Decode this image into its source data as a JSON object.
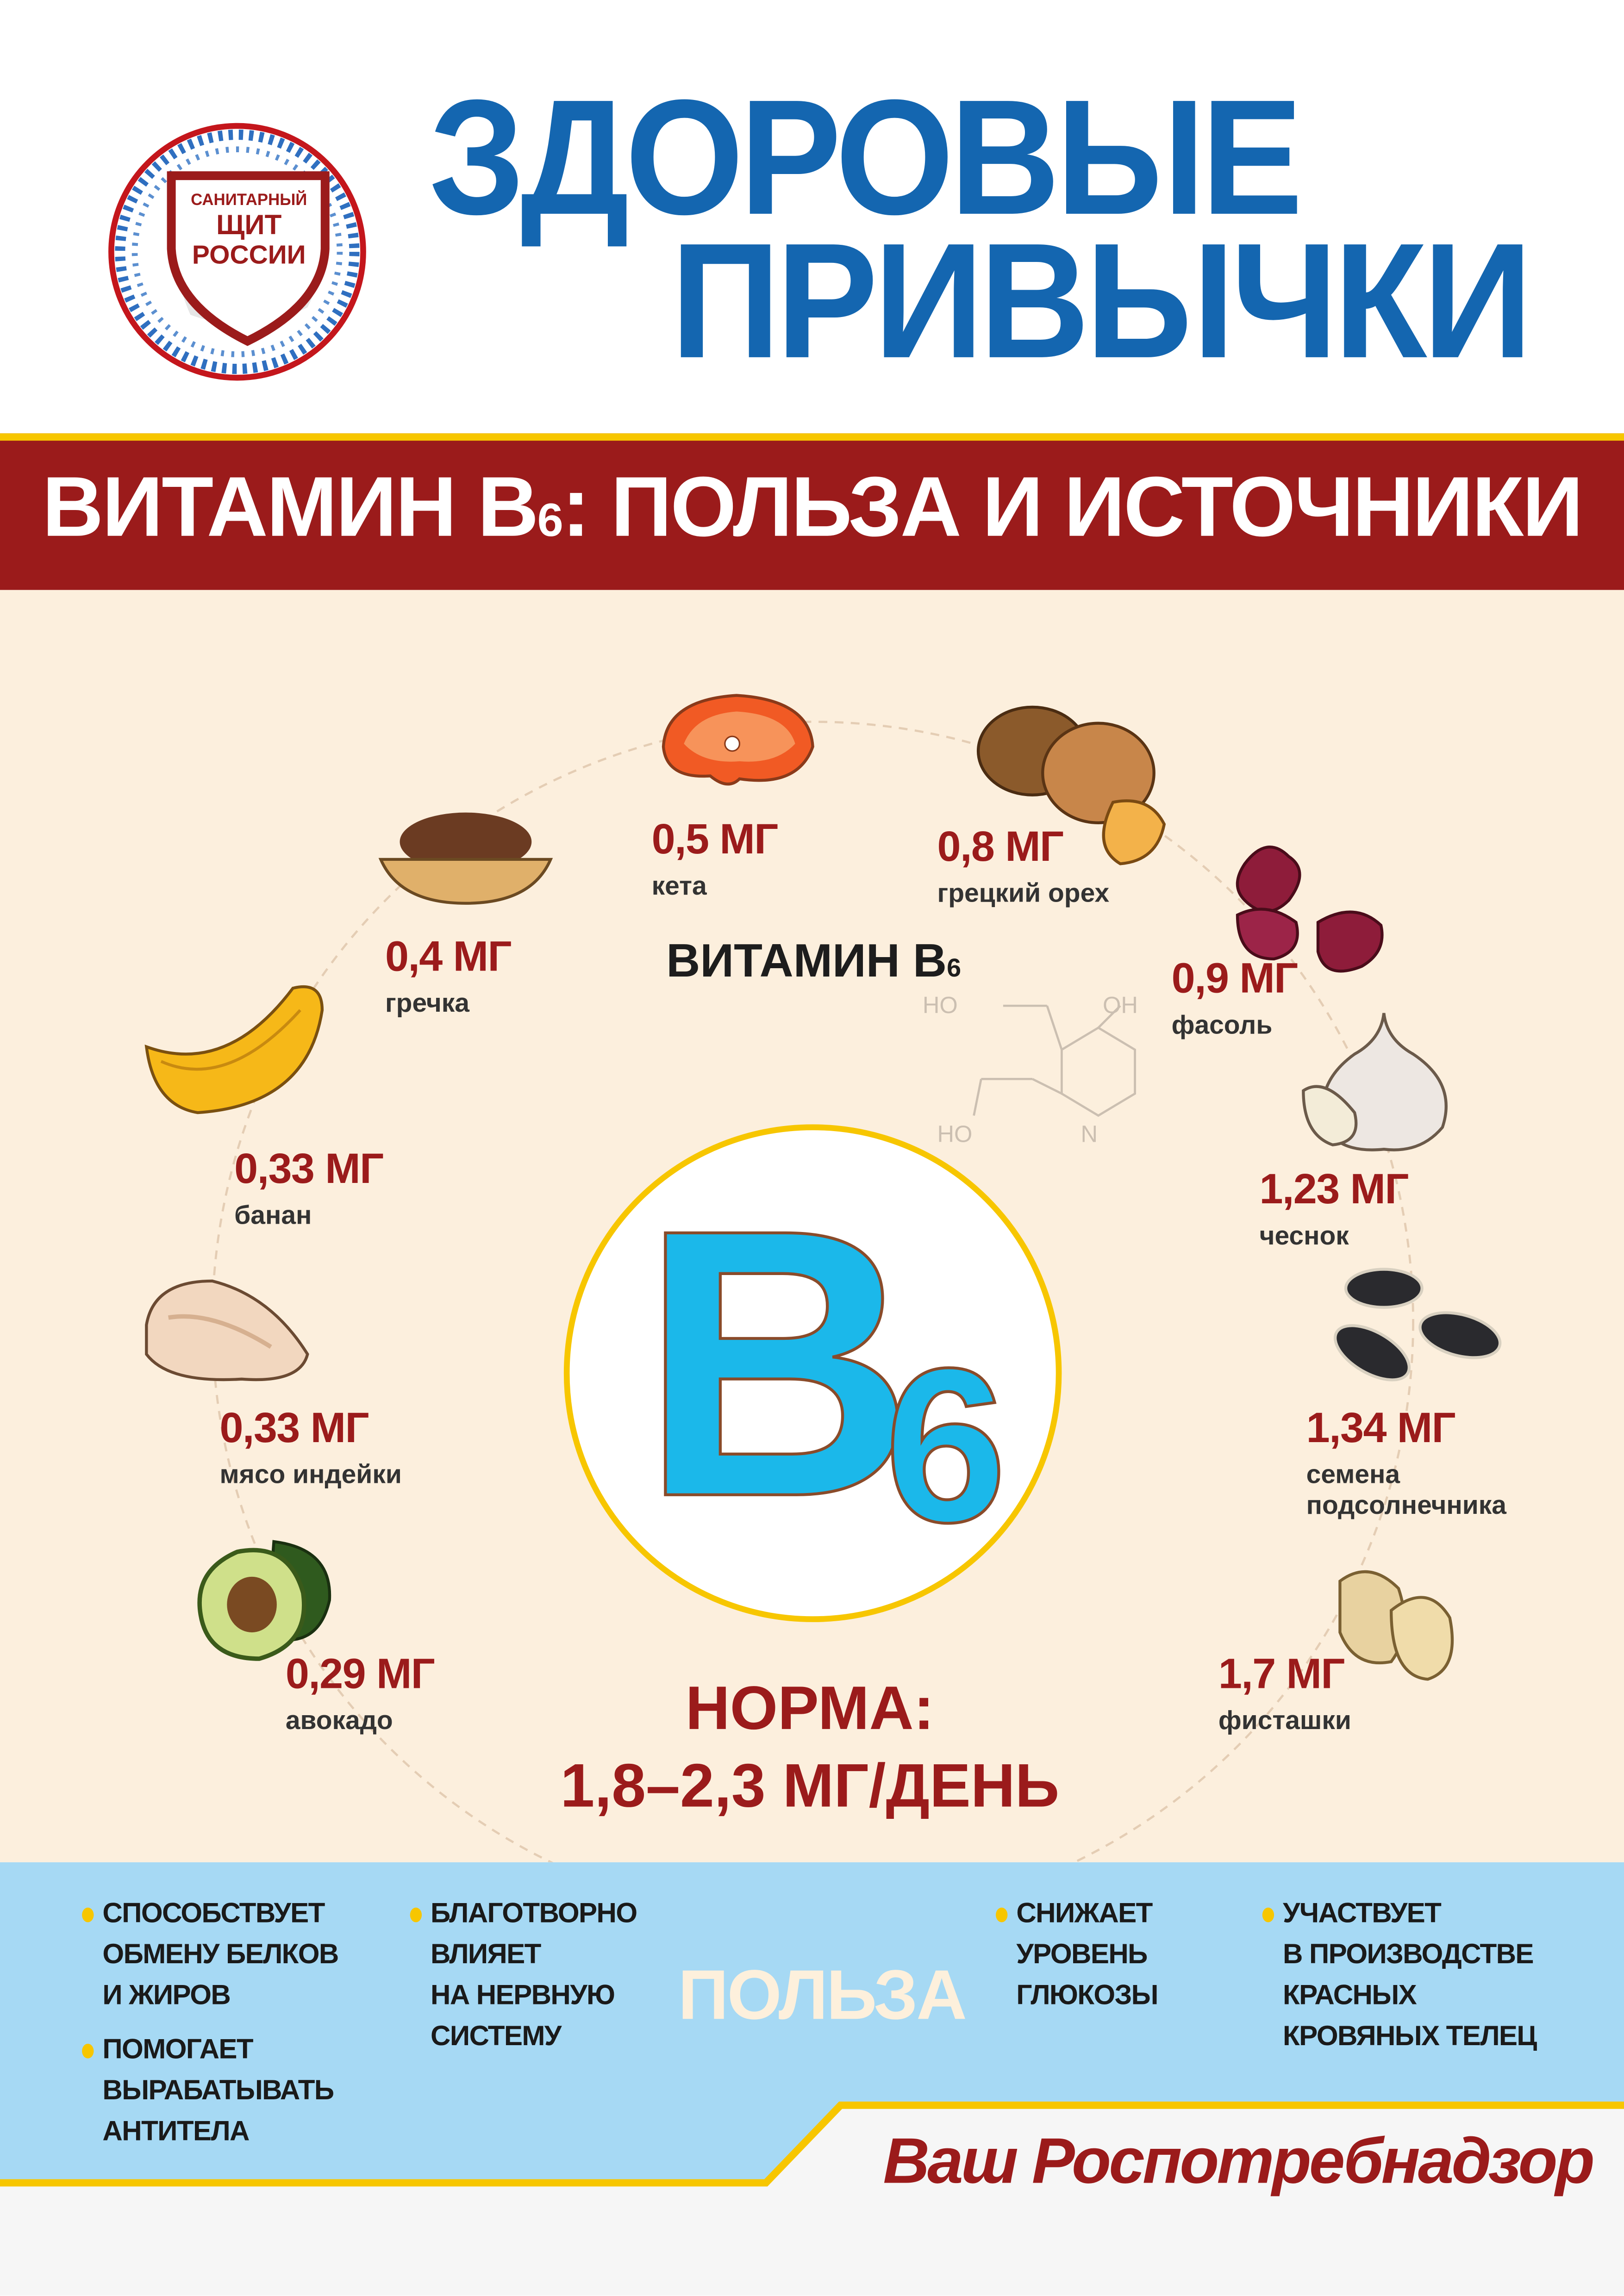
{
  "logo": {
    "line1": "САНИТАРНЫЙ",
    "line2": "ЩИТ",
    "line3": "РОССИИ"
  },
  "header": {
    "title_line1": "ЗДОРОВЫЕ",
    "title_line2": "ПРИВЫЧКИ"
  },
  "banner": {
    "prefix": "ВИТАМИН B",
    "subscript": "6",
    "suffix": ": ПОЛЬЗА И ИСТОЧНИКИ"
  },
  "center": {
    "vitamin_label": "ВИТАМИН B",
    "vitamin_sub": "6",
    "big_letter": "B",
    "big_digit": "6",
    "molecule": {
      "ho1": "HO",
      "oh": "OH",
      "ho2": "HO",
      "n": "N"
    },
    "norm_label": "НОРМА:",
    "norm_value": "1,8–2,3 МГ/ДЕНЬ"
  },
  "sources": [
    {
      "value": "0,5 МГ",
      "name": "кета",
      "icon": "salmon-steak-icon"
    },
    {
      "value": "0,8 МГ",
      "name": "грецкий орех",
      "icon": "walnut-icon"
    },
    {
      "value": "0,4 МГ",
      "name": "гречка",
      "icon": "buckwheat-bowl-icon"
    },
    {
      "value": "0,9 МГ",
      "name": "фасоль",
      "icon": "kidney-beans-icon"
    },
    {
      "value": "0,33 МГ",
      "name": "банан",
      "icon": "banana-icon"
    },
    {
      "value": "1,23 МГ",
      "name": "чеснок",
      "icon": "garlic-icon"
    },
    {
      "value": "0,33 МГ",
      "name": "мясо индейки",
      "icon": "turkey-meat-icon"
    },
    {
      "value": "1,34 МГ",
      "name": "семена\nподсолнечника",
      "icon": "sunflower-seeds-icon"
    },
    {
      "value": "0,29 МГ",
      "name": "авокадо",
      "icon": "avocado-icon"
    },
    {
      "value": "1,7 МГ",
      "name": "фисташки",
      "icon": "pistachio-icon"
    }
  ],
  "benefits": {
    "heading": "ПОЛЬЗА",
    "items": [
      "СПОСОБСТВУЕТ\nОБМЕНУ БЕЛКОВ\nИ ЖИРОВ",
      "ПОМОГАЕТ\nВЫРАБАТЫВАТЬ\nАНТИТЕЛА",
      "БЛАГОТВОРНО\nВЛИЯЕТ\nНА НЕРВНУЮ\nСИСТЕМУ",
      "СНИЖАЕТ\nУРОВЕНЬ\nГЛЮКОЗЫ",
      "УЧАСТВУЕТ\nВ ПРОИЗВОДСТВЕ\nКРАСНЫХ\nКРОВЯНЫХ ТЕЛЕЦ"
    ]
  },
  "footer": {
    "signature": "Ваш Роспотребнадзор"
  },
  "colors": {
    "title_blue": "#1466b0",
    "banner_red": "#9b1b1b",
    "accent_yellow": "#f7c600",
    "cream": "#fcefdd",
    "benefit_blue": "#a6d9f4",
    "b6_cyan": "#1bb8ea"
  }
}
